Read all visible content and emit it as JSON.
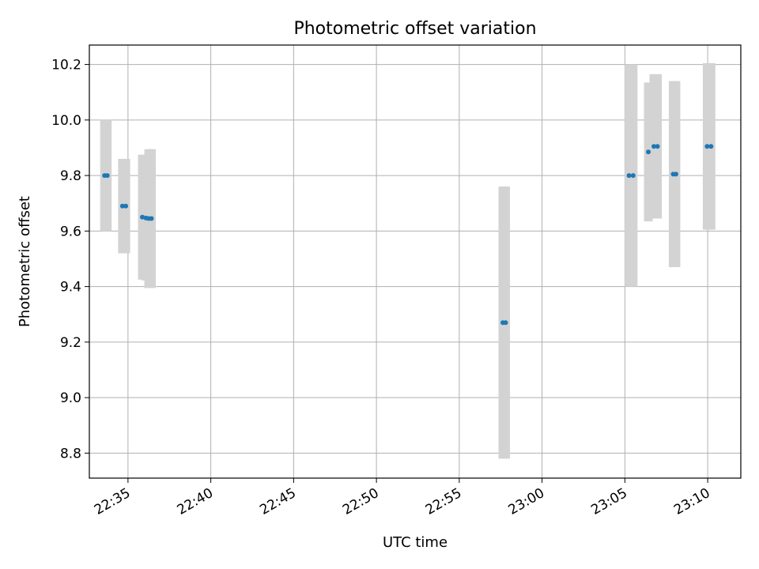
{
  "chart_data": {
    "type": "scatter",
    "title": "Photometric offset variation",
    "xlabel": "UTC time",
    "ylabel": "Photometric offset",
    "x_ticks": [
      "22:35",
      "22:40",
      "22:45",
      "22:50",
      "22:55",
      "23:00",
      "23:05",
      "23:10"
    ],
    "y_ticks": [
      "8.8",
      "9.0",
      "9.2",
      "9.4",
      "9.6",
      "9.8",
      "10.0",
      "10.2"
    ],
    "xlim": [
      "22:32:40",
      "23:12:00"
    ],
    "ylim": [
      8.71,
      10.27
    ],
    "grid": true,
    "marker_color": "#1f77b4",
    "errorbar_color": "#d3d3d3",
    "series": [
      {
        "points": [
          {
            "x": "22:33:35",
            "y": 9.8,
            "err": 0.2
          },
          {
            "x": "22:33:45",
            "y": 9.8,
            "err": 0.2
          },
          {
            "x": "22:34:40",
            "y": 9.69,
            "err": 0.17
          },
          {
            "x": "22:34:52",
            "y": 9.69,
            "err": 0.17
          },
          {
            "x": "22:35:52",
            "y": 9.65,
            "err": 0.225
          },
          {
            "x": "22:36:05",
            "y": 9.647,
            "err": 0.225
          },
          {
            "x": "22:36:15",
            "y": 9.645,
            "err": 0.25
          },
          {
            "x": "22:36:25",
            "y": 9.645,
            "err": 0.25
          },
          {
            "x": "22:57:38",
            "y": 9.27,
            "err": 0.49
          },
          {
            "x": "22:57:48",
            "y": 9.27,
            "err": 0.49
          },
          {
            "x": "23:05:15",
            "y": 9.8,
            "err": 0.4
          },
          {
            "x": "23:05:30",
            "y": 9.8,
            "err": 0.4
          },
          {
            "x": "23:06:25",
            "y": 9.885,
            "err": 0.25
          },
          {
            "x": "23:06:45",
            "y": 9.905,
            "err": 0.26
          },
          {
            "x": "23:06:58",
            "y": 9.905,
            "err": 0.26
          },
          {
            "x": "23:07:55",
            "y": 9.805,
            "err": 0.335
          },
          {
            "x": "23:08:05",
            "y": 9.805,
            "err": 0.335
          },
          {
            "x": "23:09:58",
            "y": 9.905,
            "err": 0.3
          },
          {
            "x": "23:10:12",
            "y": 9.905,
            "err": 0.3
          }
        ]
      }
    ]
  }
}
